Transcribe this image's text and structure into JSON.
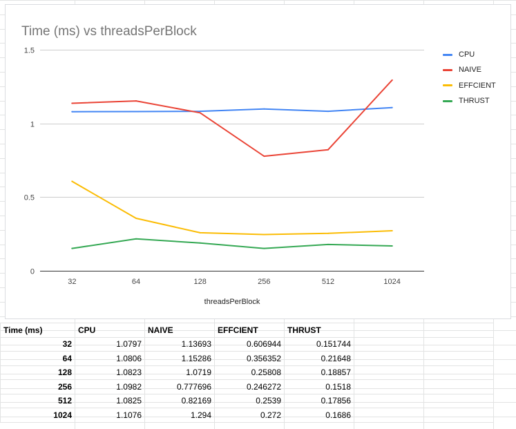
{
  "chart_data": {
    "type": "line",
    "title": "Time (ms) vs threadsPerBlock",
    "xlabel": "threadsPerBlock",
    "ylabel": "",
    "categories": [
      "32",
      "64",
      "128",
      "256",
      "512",
      "1024"
    ],
    "ylim": [
      0,
      1.5
    ],
    "yticks": [
      "0",
      "0.5",
      "1",
      "1.5"
    ],
    "grid": true,
    "legend_position": "right",
    "series": [
      {
        "name": "CPU",
        "color": "#4285f4",
        "values": [
          1.0797,
          1.0806,
          1.0823,
          1.0982,
          1.0825,
          1.1076
        ]
      },
      {
        "name": "NAIVE",
        "color": "#ea4335",
        "values": [
          1.13693,
          1.15286,
          1.0719,
          0.777696,
          0.82169,
          1.294
        ]
      },
      {
        "name": "EFFCIENT",
        "color": "#fbbc04",
        "values": [
          0.606944,
          0.356352,
          0.25808,
          0.246272,
          0.2539,
          0.272
        ]
      },
      {
        "name": "THRUST",
        "color": "#34a853",
        "values": [
          0.151744,
          0.21648,
          0.18857,
          0.1518,
          0.17856,
          0.1686
        ]
      }
    ]
  },
  "table": {
    "header": [
      "Time (ms)",
      "CPU",
      "NAIVE",
      "EFFCIENT",
      "THRUST"
    ],
    "rows": [
      [
        "32",
        "1.0797",
        "1.13693",
        "0.606944",
        "0.151744"
      ],
      [
        "64",
        "1.0806",
        "1.15286",
        "0.356352",
        "0.21648"
      ],
      [
        "128",
        "1.0823",
        "1.0719",
        "0.25808",
        "0.18857"
      ],
      [
        "256",
        "1.0982",
        "0.777696",
        "0.246272",
        "0.1518"
      ],
      [
        "512",
        "1.0825",
        "0.82169",
        "0.2539",
        "0.17856"
      ],
      [
        "1024",
        "1.1076",
        "1.294",
        "0.272",
        "0.1686"
      ]
    ]
  }
}
